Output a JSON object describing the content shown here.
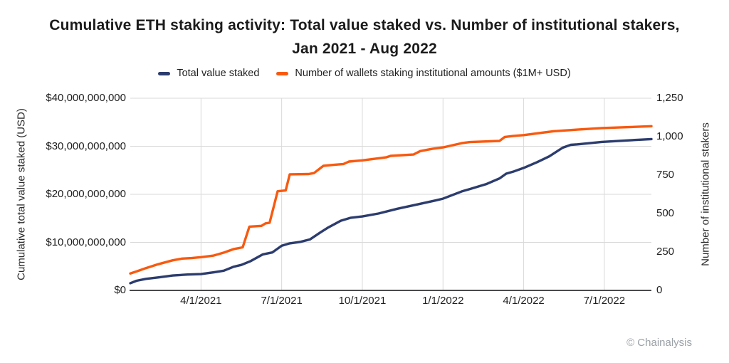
{
  "title": {
    "line1": "Cumulative ETH staking activity: Total value staked vs. Number of institutional stakers,",
    "line2": "Jan 2021 - Aug 2022"
  },
  "legend": {
    "items": [
      {
        "label": "Total value staked",
        "color": "#2C3C6E"
      },
      {
        "label": "Number of wallets staking institutional amounts ($1M+ USD)",
        "color": "#F9590E"
      }
    ]
  },
  "footer": {
    "copyright": "© Chainalysis"
  },
  "colors": {
    "navy": "#2C3C6E",
    "orange": "#F9590E",
    "gridline": "#D9D9D9",
    "axis_line": "#4A4A4C",
    "text": "#1F1F1F",
    "footer_gray": "#9AA0A5"
  },
  "chart_data": {
    "type": "line",
    "title": "Cumulative ETH staking activity: Total value staked vs. Number of institutional stakers, Jan 2021 - Aug 2022",
    "grid": "horizontal and vertical gridlines on",
    "legend_position": "top center",
    "x_unit": "months since Jan 1 2021 (fractional)",
    "x_domain": [
      0.37,
      19.75
    ],
    "x_ticks": [
      {
        "m": 3,
        "label": "4/1/2021"
      },
      {
        "m": 6,
        "label": "7/1/2021"
      },
      {
        "m": 9,
        "label": "10/1/2021"
      },
      {
        "m": 12,
        "label": "1/1/2022"
      },
      {
        "m": 15,
        "label": "4/1/2022"
      },
      {
        "m": 18,
        "label": "7/1/2022"
      }
    ],
    "left_axis": {
      "label": "Cumulative total value staked (USD)",
      "range": [
        0,
        40000000000
      ],
      "ticks": [
        {
          "value": 0,
          "label": "$0"
        },
        {
          "value": 10000000000,
          "label": "$10,000,000,000"
        },
        {
          "value": 20000000000,
          "label": "$20,000,000,000"
        },
        {
          "value": 30000000000,
          "label": "$30,000,000,000"
        },
        {
          "value": 40000000000,
          "label": "$40,000,000,000"
        }
      ]
    },
    "right_axis": {
      "label": "Number of institutional stakers",
      "range": [
        0,
        1250
      ],
      "ticks": [
        {
          "value": 0,
          "label": "0"
        },
        {
          "value": 250,
          "label": "250"
        },
        {
          "value": 500,
          "label": "500"
        },
        {
          "value": 750,
          "label": "750"
        },
        {
          "value": 1000,
          "label": "1,000"
        },
        {
          "value": 1250,
          "label": "1,250"
        }
      ]
    },
    "series": [
      {
        "name": "Total value staked",
        "axis": "left",
        "color": "#2C3C6E",
        "unit": "USD",
        "points": [
          [
            0.37,
            1500000000
          ],
          [
            0.6,
            2000000000
          ],
          [
            0.95,
            2400000000
          ],
          [
            1.4,
            2700000000
          ],
          [
            1.95,
            3100000000
          ],
          [
            2.5,
            3300000000
          ],
          [
            3.0,
            3400000000
          ],
          [
            3.5,
            3800000000
          ],
          [
            3.85,
            4100000000
          ],
          [
            4.2,
            4900000000
          ],
          [
            4.5,
            5300000000
          ],
          [
            4.85,
            6100000000
          ],
          [
            5.3,
            7500000000
          ],
          [
            5.65,
            7900000000
          ],
          [
            6.0,
            9300000000
          ],
          [
            6.3,
            9800000000
          ],
          [
            6.7,
            10100000000
          ],
          [
            7.05,
            10600000000
          ],
          [
            7.45,
            12100000000
          ],
          [
            7.7,
            13000000000
          ],
          [
            8.2,
            14500000000
          ],
          [
            8.55,
            15100000000
          ],
          [
            9.0,
            15400000000
          ],
          [
            9.6,
            16000000000
          ],
          [
            10.3,
            17000000000
          ],
          [
            11.05,
            17900000000
          ],
          [
            11.7,
            18700000000
          ],
          [
            12.0,
            19100000000
          ],
          [
            12.7,
            20600000000
          ],
          [
            13.0,
            21100000000
          ],
          [
            13.6,
            22100000000
          ],
          [
            14.1,
            23300000000
          ],
          [
            14.35,
            24300000000
          ],
          [
            14.6,
            24700000000
          ],
          [
            15.0,
            25500000000
          ],
          [
            15.5,
            26700000000
          ],
          [
            15.95,
            27900000000
          ],
          [
            16.45,
            29700000000
          ],
          [
            16.75,
            30300000000
          ],
          [
            17.0,
            30400000000
          ],
          [
            17.9,
            30900000000
          ],
          [
            18.8,
            31200000000
          ],
          [
            19.75,
            31500000000
          ]
        ]
      },
      {
        "name": "Number of wallets staking institutional amounts ($1M+ USD)",
        "axis": "right",
        "color": "#F9590E",
        "unit": "wallets",
        "points": [
          [
            0.37,
            110
          ],
          [
            0.6,
            123
          ],
          [
            0.95,
            145
          ],
          [
            1.4,
            170
          ],
          [
            1.95,
            196
          ],
          [
            2.3,
            207
          ],
          [
            2.65,
            210
          ],
          [
            3.0,
            216
          ],
          [
            3.45,
            226
          ],
          [
            3.85,
            246
          ],
          [
            4.2,
            268
          ],
          [
            4.55,
            280
          ],
          [
            4.8,
            415
          ],
          [
            5.25,
            420
          ],
          [
            5.4,
            436
          ],
          [
            5.55,
            440
          ],
          [
            5.85,
            645
          ],
          [
            6.15,
            650
          ],
          [
            6.3,
            755
          ],
          [
            7.0,
            757
          ],
          [
            7.2,
            763
          ],
          [
            7.55,
            810
          ],
          [
            7.9,
            816
          ],
          [
            8.3,
            822
          ],
          [
            8.5,
            838
          ],
          [
            9.0,
            846
          ],
          [
            9.9,
            866
          ],
          [
            10.05,
            875
          ],
          [
            10.9,
            884
          ],
          [
            11.15,
            906
          ],
          [
            11.6,
            921
          ],
          [
            12.0,
            930
          ],
          [
            12.7,
            958
          ],
          [
            13.0,
            965
          ],
          [
            14.1,
            972
          ],
          [
            14.3,
            998
          ],
          [
            14.6,
            1004
          ],
          [
            15.0,
            1010
          ],
          [
            16.1,
            1035
          ],
          [
            17.0,
            1046
          ],
          [
            17.9,
            1056
          ],
          [
            19.0,
            1063
          ],
          [
            19.75,
            1068
          ]
        ]
      }
    ]
  }
}
